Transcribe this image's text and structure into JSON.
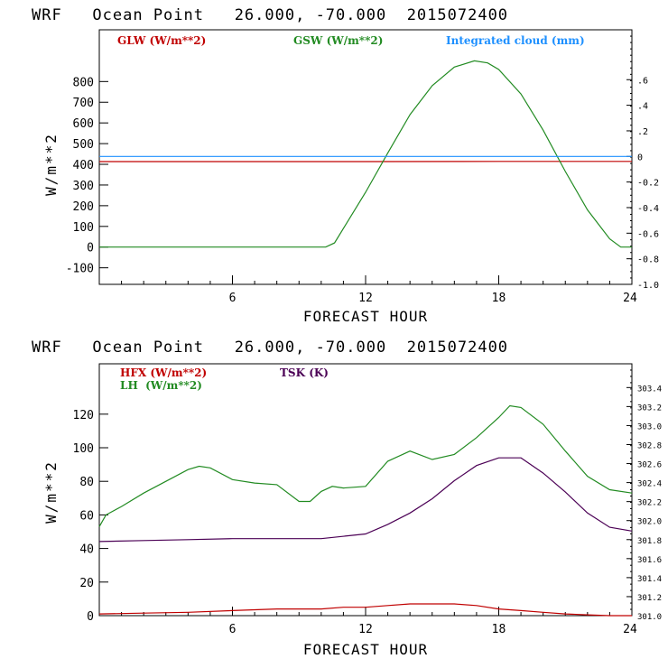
{
  "chart_data": [
    {
      "type": "line",
      "title": "WRF   Ocean Point   26.000, -70.000  2015072400",
      "xlabel": "FORECAST HOUR",
      "ylabel": "W/m**2",
      "xlim": [
        0,
        24
      ],
      "ylim": [
        -180,
        1050
      ],
      "x_ticks": [
        "6",
        "12",
        "18",
        "24"
      ],
      "y_ticks": [
        "-100",
        "0",
        "100",
        "200",
        "300",
        "400",
        "500",
        "600",
        "700",
        "800"
      ],
      "right_axis": {
        "ylim": [
          -1.0,
          0.99
        ],
        "ticks": [
          "-1.0",
          "-0.8",
          "-0.6",
          "-0.4",
          "-0.2",
          "0",
          ".2",
          ".4",
          ".6"
        ]
      },
      "legend": [
        "GLW (W/m**2)",
        "GSW (W/m**2)",
        "Integrated cloud (mm)"
      ],
      "series": [
        {
          "name": "GLW (W/m**2)",
          "color": "#c00000",
          "axis": "left",
          "x": [
            0,
            6,
            12,
            18,
            24
          ],
          "values": [
            413,
            413,
            413,
            414,
            414
          ]
        },
        {
          "name": "GSW (W/m**2)",
          "color": "#228b22",
          "axis": "left",
          "x": [
            0,
            10.2,
            10.6,
            11,
            12,
            13,
            14,
            15,
            16,
            16.9,
            17.5,
            18,
            19,
            20,
            21,
            22,
            23,
            23.5,
            24
          ],
          "values": [
            0,
            0,
            20,
            90,
            265,
            455,
            640,
            780,
            870,
            900,
            890,
            858,
            740,
            565,
            365,
            180,
            40,
            0,
            0
          ]
        },
        {
          "name": "Integrated cloud (mm)",
          "color": "#1e90ff",
          "axis": "right",
          "x": [
            0,
            24
          ],
          "values": [
            0,
            0
          ]
        }
      ]
    },
    {
      "type": "line",
      "title": "WRF   Ocean Point   26.000, -70.000  2015072400",
      "xlabel": "FORECAST HOUR",
      "ylabel": "W/m**2",
      "xlim": [
        0,
        24
      ],
      "ylim": [
        0,
        150
      ],
      "x_ticks": [
        "6",
        "12",
        "18",
        "24"
      ],
      "y_ticks": [
        "0",
        "20",
        "40",
        "60",
        "80",
        "100",
        "120"
      ],
      "right_axis": {
        "ylim": [
          301.0,
          303.65
        ],
        "ticks": [
          "301.0",
          "301.2",
          "301.4",
          "301.6",
          "301.8",
          "302.0",
          "302.2",
          "302.4",
          "302.6",
          "302.8",
          "303.0",
          "303.2",
          "303.4"
        ]
      },
      "legend": [
        "HFX (W/m**2)",
        "LH  (W/m**2)",
        "TSK (K)"
      ],
      "series": [
        {
          "name": "HFX (W/m**2)",
          "color": "#c00000",
          "axis": "left",
          "x": [
            0,
            2,
            4,
            6,
            8,
            10,
            11,
            12,
            13,
            14,
            15,
            16,
            17,
            18,
            19,
            20,
            21,
            22,
            23,
            24
          ],
          "values": [
            1,
            1.5,
            2,
            3,
            4,
            4,
            5,
            5,
            6,
            7,
            7,
            7,
            6,
            4,
            3,
            2,
            1,
            0.5,
            0,
            0
          ]
        },
        {
          "name": "LH  (W/m**2)",
          "color": "#228b22",
          "axis": "left",
          "x": [
            0,
            0.3,
            1,
            2,
            3,
            4,
            4.5,
            5,
            6,
            7,
            8,
            9,
            9.5,
            10,
            10.5,
            11,
            12,
            13,
            14,
            15,
            16,
            17,
            18,
            18.5,
            19,
            20,
            21,
            22,
            23,
            24
          ],
          "values": [
            53,
            60,
            65,
            73,
            80,
            87,
            89,
            88,
            81,
            79,
            78,
            68,
            68,
            74,
            77,
            76,
            77,
            92,
            98,
            93,
            96,
            106,
            118,
            125,
            124,
            114,
            98,
            83,
            75,
            73
          ]
        },
        {
          "name": "TSK (K)",
          "color": "#4b0055",
          "axis": "right",
          "x": [
            0,
            2,
            4,
            6,
            8,
            10,
            12,
            13,
            14,
            15,
            16,
            17,
            18,
            19,
            20,
            21,
            22,
            23,
            24
          ],
          "values": [
            301.78,
            301.79,
            301.8,
            301.81,
            301.81,
            301.81,
            301.86,
            301.96,
            302.08,
            302.23,
            302.42,
            302.58,
            302.66,
            302.66,
            302.5,
            302.3,
            302.08,
            301.93,
            301.89
          ]
        }
      ]
    }
  ]
}
